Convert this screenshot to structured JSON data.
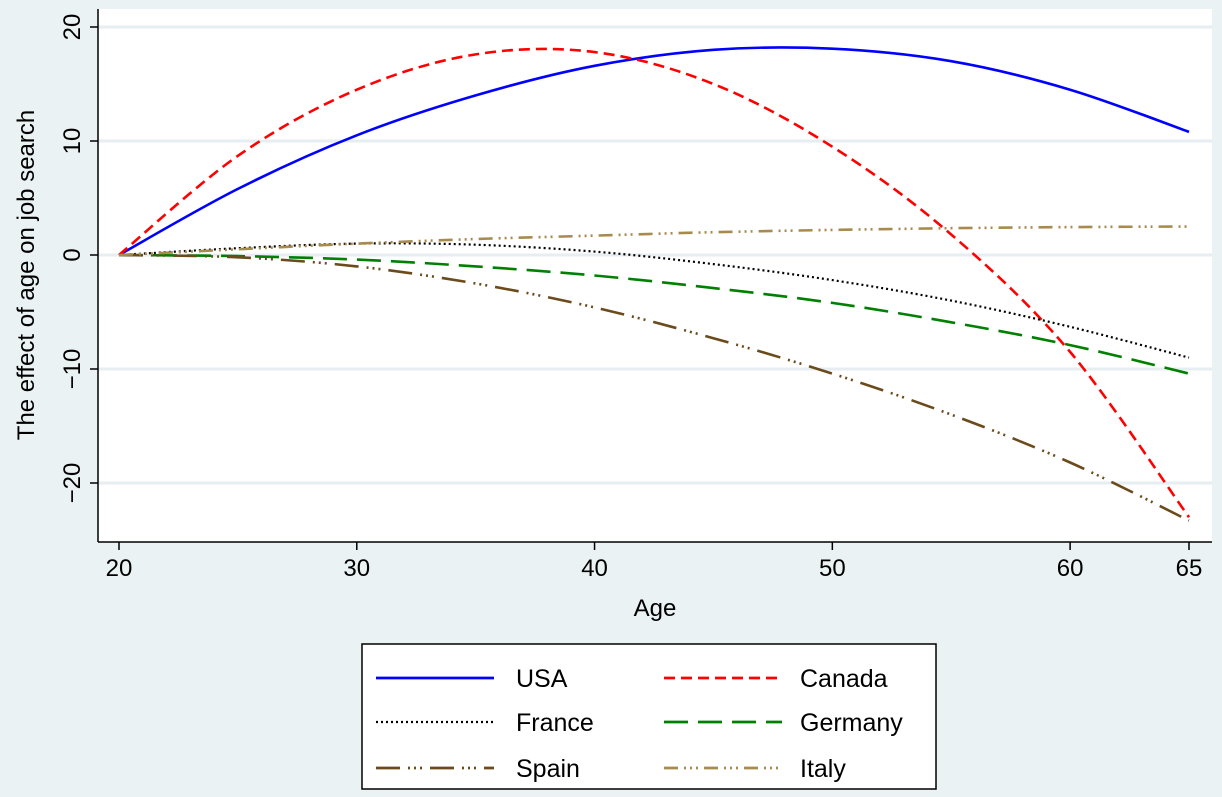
{
  "chart_data": {
    "type": "line",
    "title": "",
    "xlabel": "Age",
    "ylabel": "The effect of age on job search",
    "xlim": [
      20,
      65
    ],
    "ylim": [
      -25,
      20
    ],
    "x_ticks": [
      20,
      30,
      40,
      50,
      60,
      65
    ],
    "y_ticks": [
      20,
      10,
      0,
      -10,
      -20
    ],
    "y_tick_labels": [
      "20",
      "10",
      "0",
      "−10",
      "−20"
    ],
    "grid": "horizontal",
    "legend_placement": "bottom",
    "series": [
      {
        "name": "USA",
        "color": "#0000ff",
        "style": "solid",
        "x": [
          20,
          25,
          30,
          35,
          40,
          45,
          50,
          55,
          60,
          65
        ],
        "y": [
          0,
          5.8,
          10.5,
          14.0,
          16.6,
          18.0,
          18.1,
          17.0,
          14.5,
          10.8
        ]
      },
      {
        "name": "Canada",
        "color": "#ff0000",
        "style": "dash",
        "x": [
          20,
          25,
          30,
          35,
          40,
          45,
          50,
          55,
          60,
          65
        ],
        "y": [
          0,
          8.7,
          14.5,
          17.6,
          17.8,
          15.0,
          9.5,
          1.8,
          -8.5,
          -23.0
        ]
      },
      {
        "name": "France",
        "color": "#000000",
        "style": "dot",
        "x": [
          20,
          25,
          30,
          35,
          40,
          45,
          50,
          55,
          60,
          65
        ],
        "y": [
          0,
          0.6,
          1.0,
          0.9,
          0.3,
          -0.8,
          -2.2,
          -4.0,
          -6.3,
          -9.0
        ]
      },
      {
        "name": "Germany",
        "color": "#008000",
        "style": "longdash",
        "x": [
          20,
          25,
          30,
          35,
          40,
          45,
          50,
          55,
          60,
          65
        ],
        "y": [
          0,
          -0.1,
          -0.4,
          -1.0,
          -1.8,
          -2.9,
          -4.2,
          -5.9,
          -7.9,
          -10.4
        ]
      },
      {
        "name": "Spain",
        "color": "#6b4a1c",
        "style": "longdashdot3",
        "x": [
          20,
          25,
          30,
          35,
          40,
          45,
          50,
          55,
          60,
          65
        ],
        "y": [
          0,
          -0.2,
          -1.0,
          -2.5,
          -4.6,
          -7.3,
          -10.4,
          -14.0,
          -18.2,
          -23.3
        ]
      },
      {
        "name": "Italy",
        "color": "#a88b4c",
        "style": "dashdot3",
        "x": [
          20,
          25,
          30,
          35,
          40,
          45,
          50,
          55,
          60,
          65
        ],
        "y": [
          0,
          0.5,
          1.0,
          1.4,
          1.7,
          2.0,
          2.2,
          2.35,
          2.45,
          2.5
        ]
      }
    ],
    "legend_order": [
      "USA",
      "Canada",
      "France",
      "Germany",
      "Spain",
      "Italy"
    ]
  }
}
